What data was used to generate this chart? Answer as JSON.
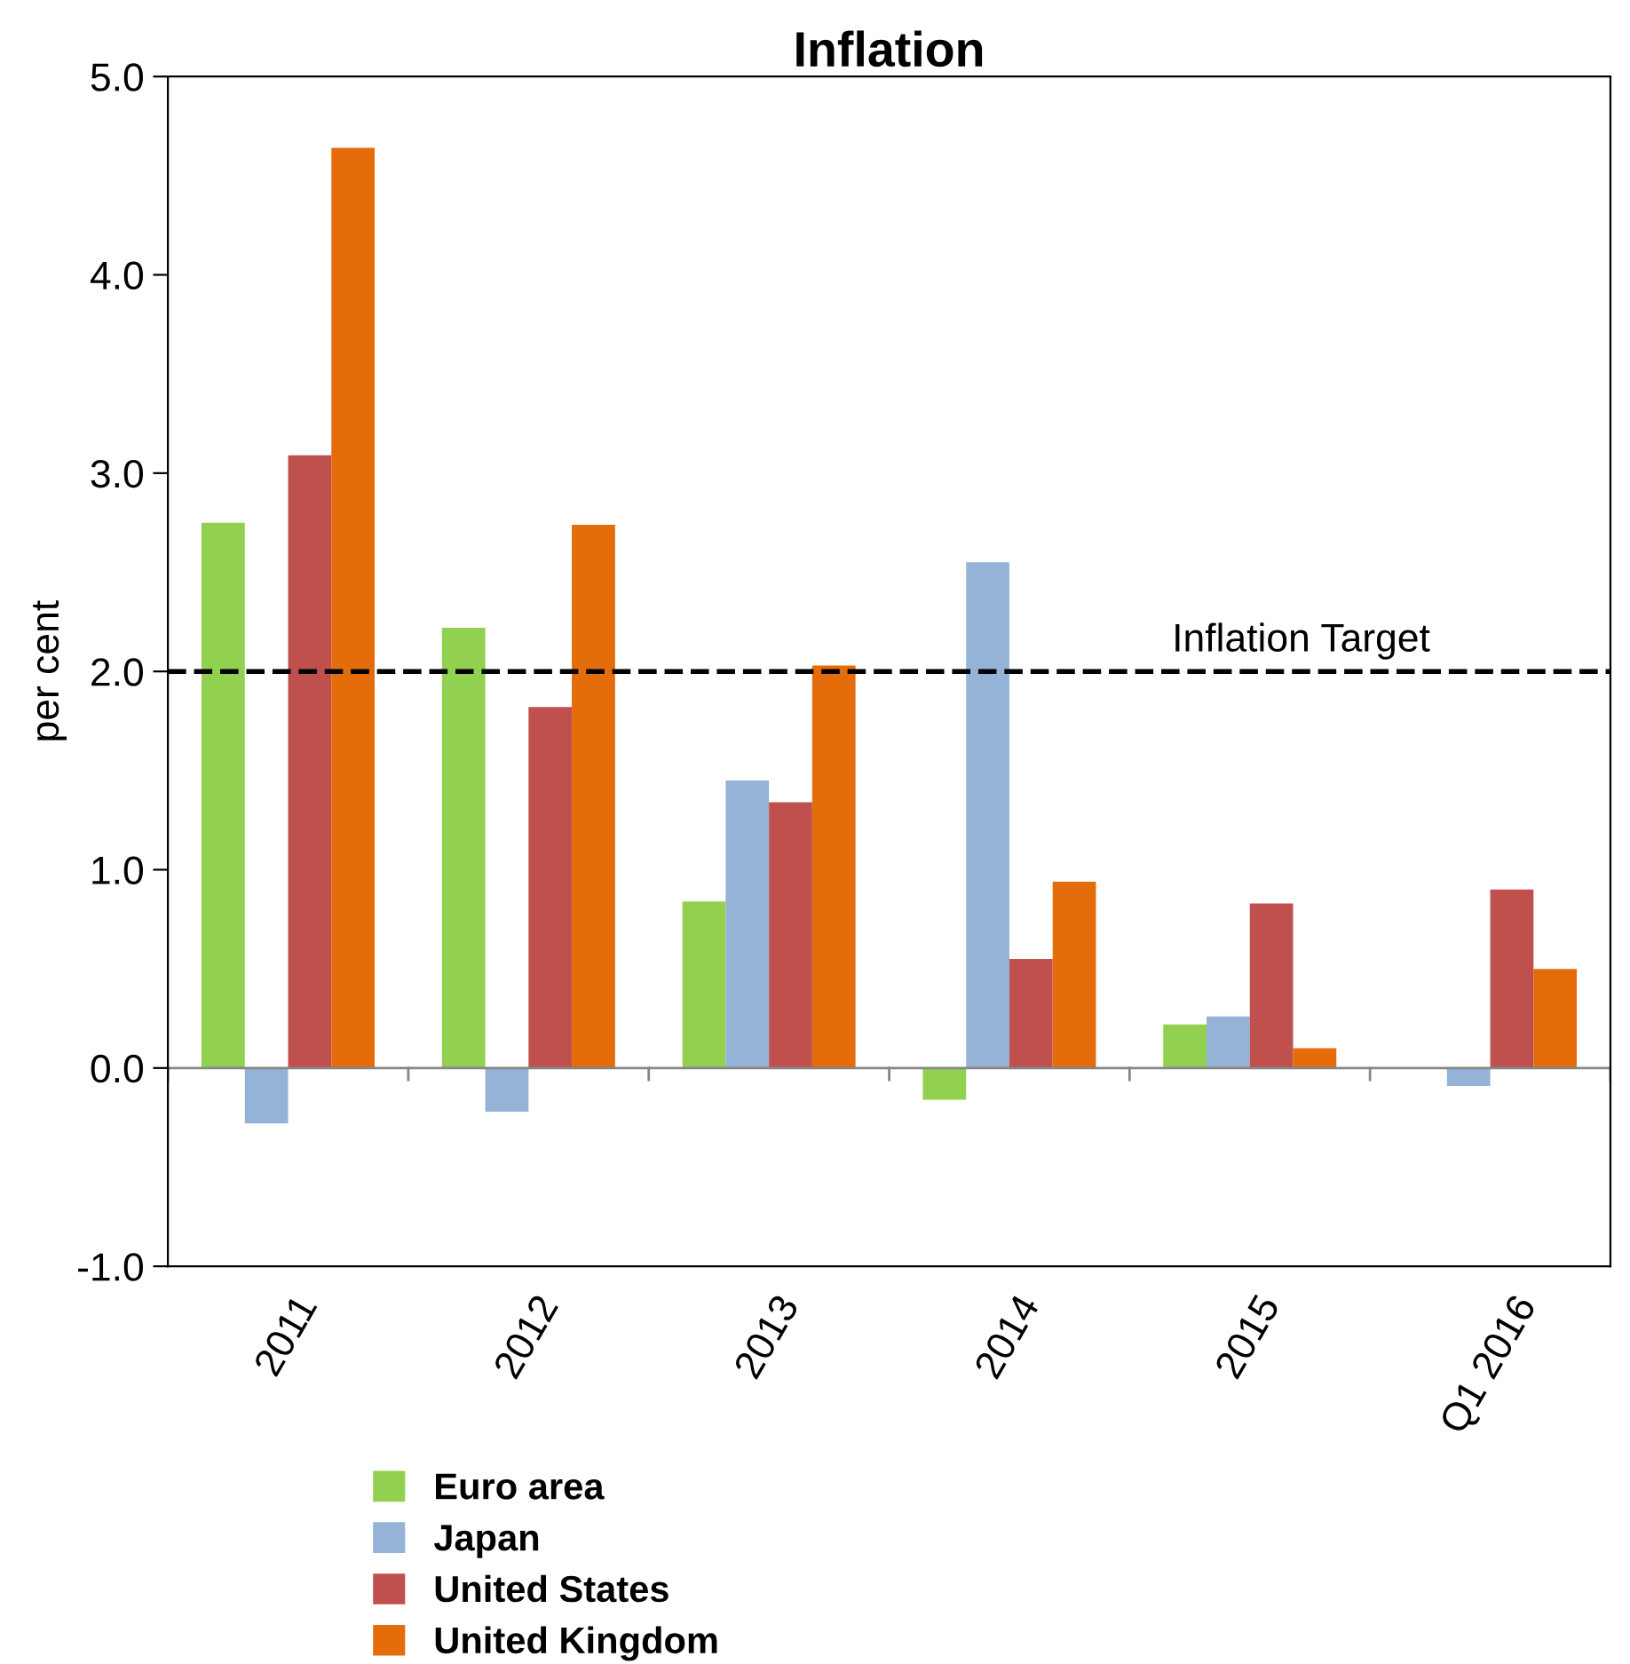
{
  "chart_data": {
    "type": "bar",
    "title": "Inflation",
    "ylabel": "per cent",
    "categories": [
      "2011",
      "2012",
      "2013",
      "2014",
      "2015",
      "Q1 2016"
    ],
    "series": [
      {
        "name": "Euro area",
        "color": "#92d050",
        "values": [
          2.75,
          2.22,
          0.84,
          -0.16,
          0.22,
          0.0
        ]
      },
      {
        "name": "Japan",
        "color": "#95b3d7",
        "values": [
          -0.28,
          -0.22,
          1.45,
          2.55,
          0.26,
          -0.09
        ]
      },
      {
        "name": "United States",
        "color": "#c0504d",
        "values": [
          3.09,
          1.82,
          1.34,
          0.55,
          0.83,
          0.9
        ]
      },
      {
        "name": "United Kingdom",
        "color": "#e46c0a",
        "values": [
          4.64,
          2.74,
          2.03,
          0.94,
          0.1,
          0.5
        ]
      }
    ],
    "ylim": [
      -1.0,
      5.0
    ],
    "yticks": [
      {
        "value": -1,
        "label": "-1.0"
      },
      {
        "value": 0,
        "label": "0.0"
      },
      {
        "value": 1,
        "label": "1.0"
      },
      {
        "value": 2,
        "label": "2.0"
      },
      {
        "value": 3,
        "label": "3.0"
      },
      {
        "value": 4,
        "label": "4.0"
      },
      {
        "value": 5,
        "label": "5.0"
      }
    ],
    "ref_lines": [
      {
        "axis": "y",
        "value": 2.0,
        "label": "Inflation Target",
        "color": "#000000",
        "line_style": "dashed"
      }
    ],
    "grid": false,
    "legend": "bottom"
  }
}
